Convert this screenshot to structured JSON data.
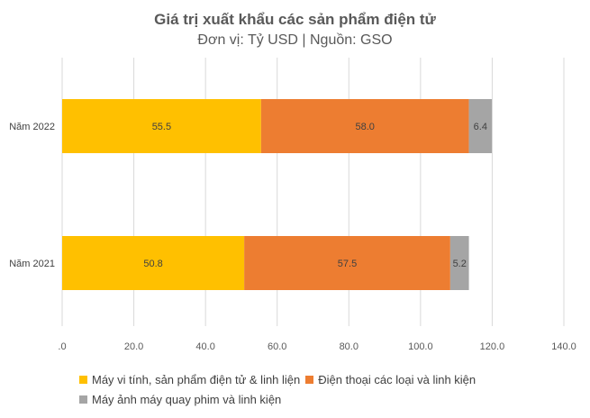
{
  "chart_data": {
    "type": "bar",
    "orientation": "horizontal",
    "stacked": true,
    "title": "Giá trị xuất khẩu các sản phẩm điện tử",
    "subtitle": "Đơn vị: Tỷ USD | Nguồn: GSO",
    "categories": [
      "Năm 2022",
      "Năm 2021"
    ],
    "series": [
      {
        "name": "Máy vi tính, sản phẩm điện tử & linh liện",
        "color": "#FFC000",
        "values": [
          55.5,
          50.8
        ],
        "labels": [
          "55.5",
          "50.8"
        ]
      },
      {
        "name": "Điện thoại các loại và linh kiện",
        "color": "#ED7D31",
        "values": [
          58.0,
          57.5
        ],
        "labels": [
          "58.0",
          "57.5"
        ]
      },
      {
        "name": "Máy ảnh máy quay phim và linh kiện",
        "color": "#A5A5A5",
        "values": [
          6.4,
          5.2
        ],
        "labels": [
          "6.4",
          "5.2"
        ]
      }
    ],
    "xlim": [
      0,
      140
    ],
    "xticks": [
      0,
      20,
      40,
      60,
      80,
      100,
      120,
      140
    ],
    "xtick_labels": [
      ".0",
      "20.0",
      "40.0",
      "60.0",
      "80.0",
      "100.0",
      "120.0",
      "140.0"
    ],
    "grid": true,
    "legend_position": "bottom"
  }
}
